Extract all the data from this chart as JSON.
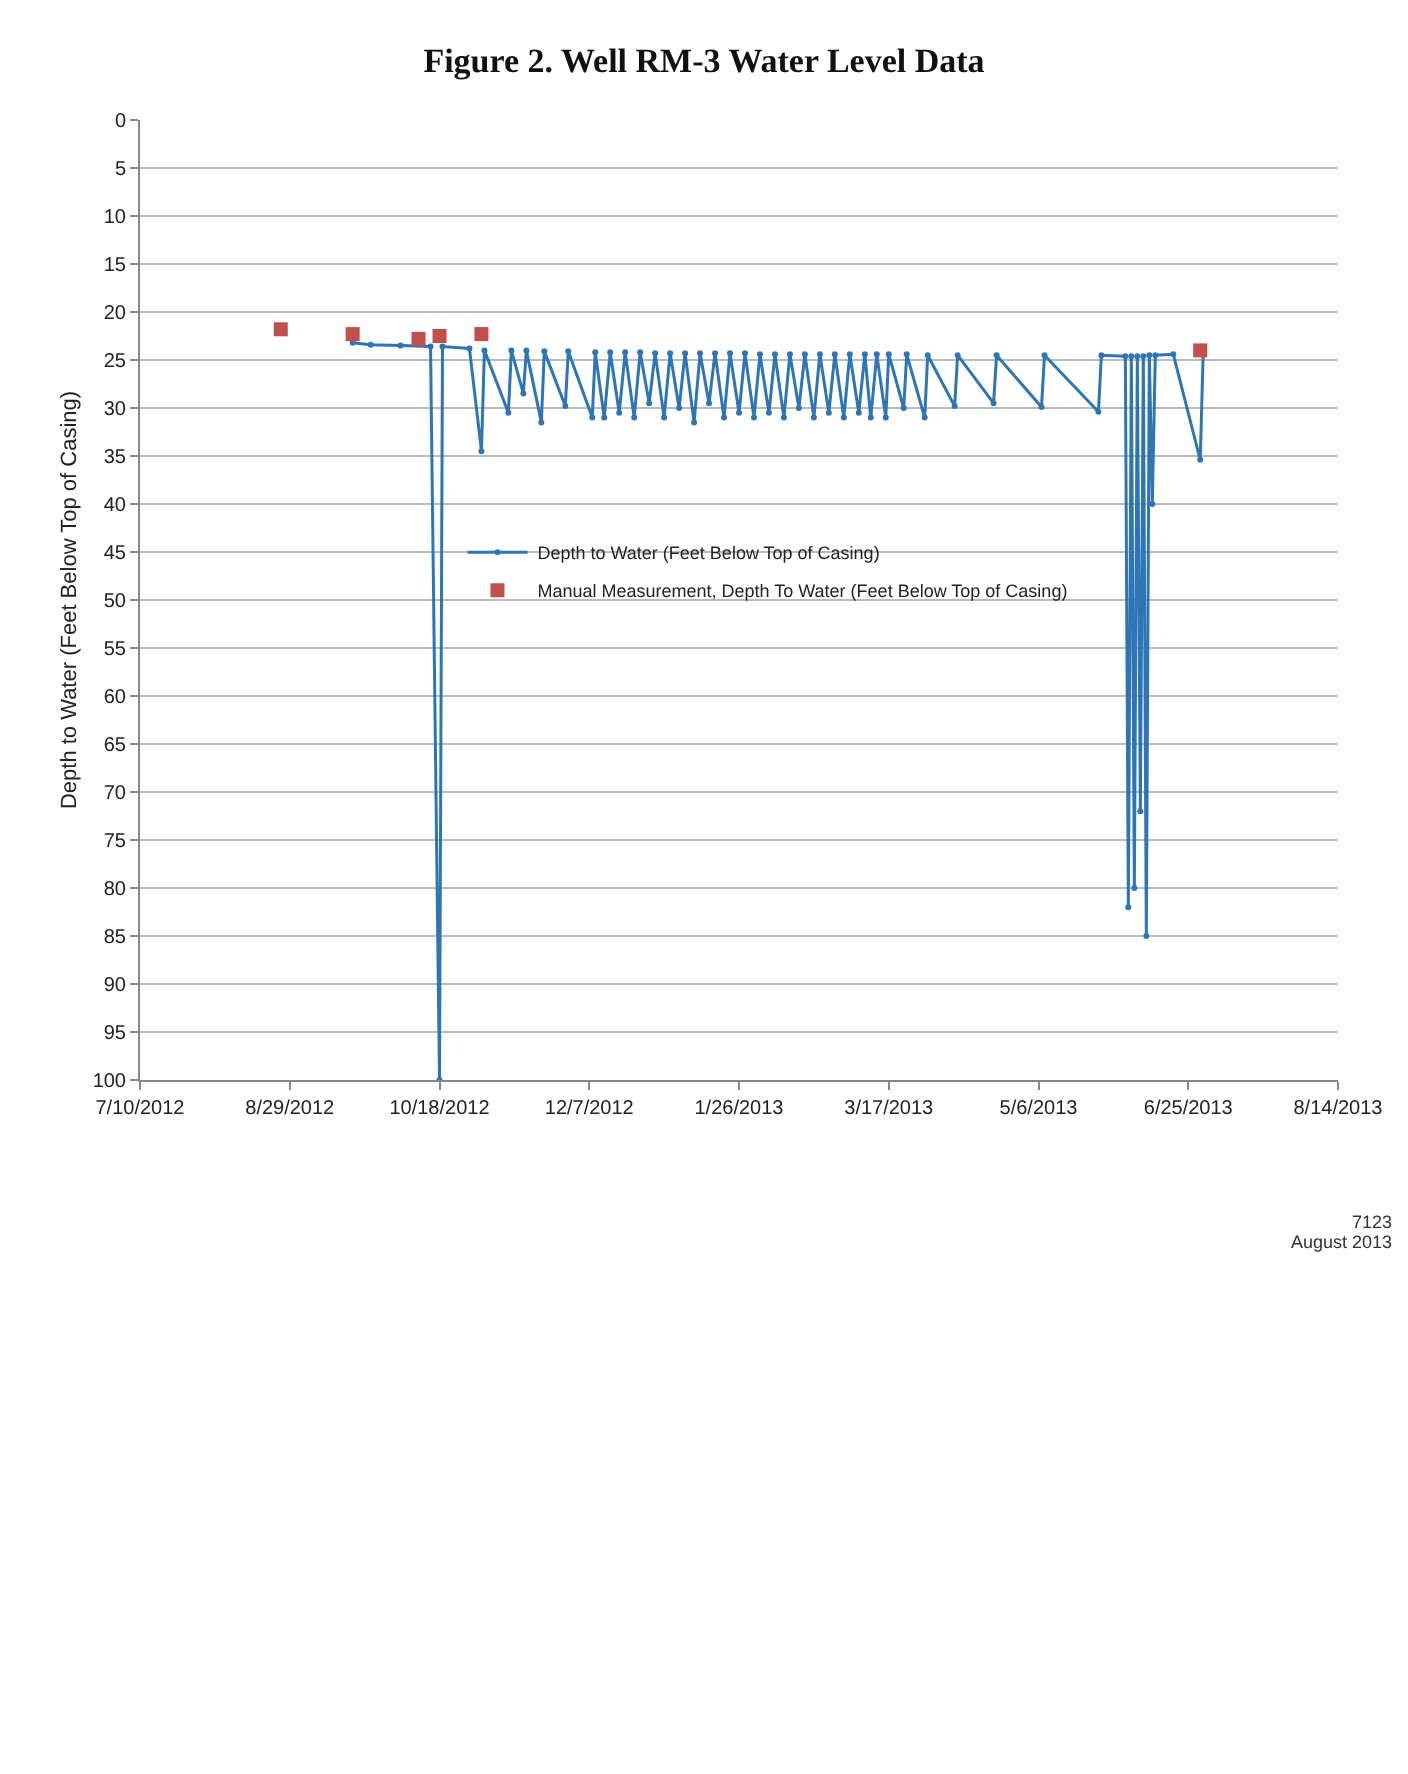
{
  "chart_data": {
    "type": "line",
    "title": "Figure 2. Well RM-3 Water Level Data",
    "ylabel": "Depth to Water (Feet Below Top of Casing)",
    "xlim": [
      "2012-07-10",
      "2013-08-14"
    ],
    "xticks": [
      {
        "value": "2012-07-10",
        "label": "7/10/2012"
      },
      {
        "value": "2012-08-29",
        "label": "8/29/2012"
      },
      {
        "value": "2012-10-18",
        "label": "10/18/2012"
      },
      {
        "value": "2012-12-07",
        "label": "12/7/2012"
      },
      {
        "value": "2013-01-26",
        "label": "1/26/2013"
      },
      {
        "value": "2013-03-17",
        "label": "3/17/2013"
      },
      {
        "value": "2013-05-06",
        "label": "5/6/2013"
      },
      {
        "value": "2013-06-25",
        "label": "6/25/2013"
      },
      {
        "value": "2013-08-14",
        "label": "8/14/2013"
      }
    ],
    "ylim": [
      100,
      0
    ],
    "yticks": [
      0,
      5,
      10,
      15,
      20,
      25,
      30,
      35,
      40,
      45,
      50,
      55,
      60,
      65,
      70,
      75,
      80,
      85,
      90,
      95,
      100
    ],
    "grid": "y",
    "legend": "top",
    "series": [
      {
        "name": "Depth to Water (Feet Below Top of Casing)",
        "color": "#2e75b6",
        "marker": "circle",
        "x": [
          "2012-09-19",
          "2012-09-25",
          "2012-10-05",
          "2012-10-15",
          "2012-10-18",
          "2012-10-19",
          "2012-10-28",
          "2012-11-01",
          "2012-11-02",
          "2012-11-10",
          "2012-11-11",
          "2012-11-15",
          "2012-11-16",
          "2012-11-21",
          "2012-11-22",
          "2012-11-29",
          "2012-11-30",
          "2012-12-08",
          "2012-12-09",
          "2012-12-12",
          "2012-12-14",
          "2012-12-17",
          "2012-12-19",
          "2012-12-22",
          "2012-12-24",
          "2012-12-27",
          "2012-12-29",
          "2013-01-01",
          "2013-01-03",
          "2013-01-06",
          "2013-01-08",
          "2013-01-11",
          "2013-01-13",
          "2013-01-16",
          "2013-01-18",
          "2013-01-21",
          "2013-01-23",
          "2013-01-26",
          "2013-01-28",
          "2013-01-31",
          "2013-02-02",
          "2013-02-05",
          "2013-02-07",
          "2013-02-10",
          "2013-02-12",
          "2013-02-15",
          "2013-02-17",
          "2013-02-20",
          "2013-02-22",
          "2013-02-25",
          "2013-02-27",
          "2013-03-02",
          "2013-03-04",
          "2013-03-07",
          "2013-03-09",
          "2013-03-11",
          "2013-03-13",
          "2013-03-16",
          "2013-03-17",
          "2013-03-22",
          "2013-03-23",
          "2013-03-29",
          "2013-03-30",
          "2013-04-08",
          "2013-04-09",
          "2013-04-21",
          "2013-04-22",
          "2013-05-07",
          "2013-05-08",
          "2013-05-26",
          "2013-05-27",
          "2013-06-04",
          "2013-06-05",
          "2013-06-06",
          "2013-06-07",
          "2013-06-08",
          "2013-06-09",
          "2013-06-10",
          "2013-06-11",
          "2013-06-12",
          "2013-06-13",
          "2013-06-14",
          "2013-06-20",
          "2013-06-29",
          "2013-06-30"
        ],
        "values": [
          23.2,
          23.4,
          23.5,
          23.6,
          100,
          23.6,
          23.8,
          34.5,
          24,
          30.5,
          24,
          28.5,
          24,
          31.5,
          24.1,
          29.8,
          24.1,
          31,
          24.2,
          31,
          24.2,
          30.5,
          24.2,
          31,
          24.2,
          29.5,
          24.3,
          31,
          24.3,
          30,
          24.3,
          31.5,
          24.3,
          29.5,
          24.3,
          31,
          24.3,
          30.5,
          24.3,
          31,
          24.4,
          30.5,
          24.4,
          31,
          24.4,
          30,
          24.4,
          31,
          24.4,
          30.5,
          24.4,
          31,
          24.4,
          30.5,
          24.4,
          31,
          24.4,
          31,
          24.4,
          30,
          24.4,
          31,
          24.5,
          29.8,
          24.5,
          29.5,
          24.5,
          29.9,
          24.5,
          30.4,
          24.5,
          24.6,
          82,
          24.6,
          80,
          24.6,
          72,
          24.6,
          85,
          24.5,
          40,
          24.5,
          24.4,
          35.4,
          24.2
        ]
      },
      {
        "name": "Manual Measurement, Depth To Water (Feet Below Top of Casing)",
        "type": "scatter",
        "color": "#c0504d",
        "marker": "square",
        "x": [
          "2012-08-26",
          "2012-09-19",
          "2012-10-11",
          "2012-10-18",
          "2012-11-01",
          "2013-06-29"
        ],
        "values": [
          21.8,
          22.3,
          22.8,
          22.5,
          22.3,
          24
        ]
      }
    ],
    "annotations": [
      "7123",
      "August 2013"
    ]
  }
}
